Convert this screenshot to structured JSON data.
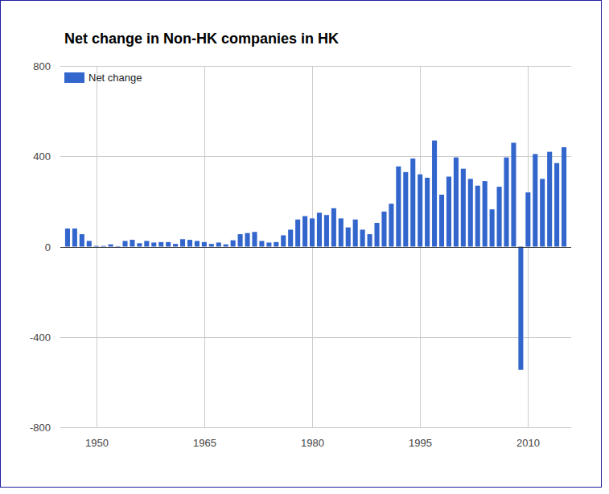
{
  "chart_data": {
    "type": "bar",
    "title": "Net change in Non-HK companies in HK",
    "x": [
      1946,
      1947,
      1948,
      1949,
      1950,
      1951,
      1952,
      1953,
      1954,
      1955,
      1956,
      1957,
      1958,
      1959,
      1960,
      1961,
      1962,
      1963,
      1964,
      1965,
      1966,
      1967,
      1968,
      1969,
      1970,
      1971,
      1972,
      1973,
      1974,
      1975,
      1976,
      1977,
      1978,
      1979,
      1980,
      1981,
      1982,
      1983,
      1984,
      1985,
      1986,
      1987,
      1988,
      1989,
      1990,
      1991,
      1992,
      1993,
      1994,
      1995,
      1996,
      1997,
      1998,
      1999,
      2000,
      2001,
      2002,
      2003,
      2004,
      2005,
      2006,
      2007,
      2008,
      2009,
      2010,
      2011,
      2012,
      2013,
      2014,
      2015
    ],
    "series": [
      {
        "name": "Net change",
        "color": "#3366cc",
        "values": [
          80,
          80,
          55,
          25,
          3,
          3,
          10,
          2,
          25,
          30,
          15,
          25,
          18,
          20,
          20,
          12,
          33,
          30,
          25,
          20,
          12,
          18,
          10,
          28,
          55,
          60,
          65,
          25,
          18,
          20,
          50,
          75,
          120,
          135,
          125,
          150,
          140,
          170,
          125,
          85,
          120,
          75,
          55,
          105,
          155,
          190,
          355,
          330,
          390,
          320,
          305,
          470,
          230,
          310,
          395,
          345,
          300,
          270,
          290,
          165,
          265,
          395,
          460,
          -546,
          240,
          410,
          300,
          420,
          370,
          440
        ]
      }
    ],
    "xlim": [
      1945,
      2016
    ],
    "xticks": [
      1950,
      1965,
      1980,
      1995,
      2010
    ],
    "ylim": [
      -800,
      800
    ],
    "yticks": [
      -800,
      -400,
      0,
      400,
      800
    ],
    "grid": true,
    "legend": "top-left"
  }
}
